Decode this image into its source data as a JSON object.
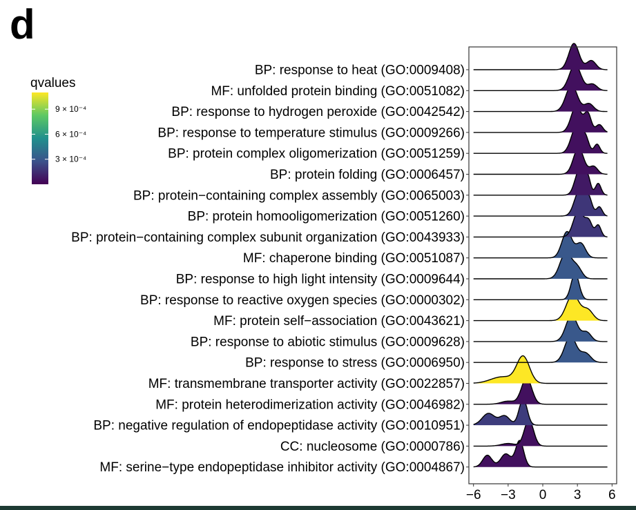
{
  "panel_label": "d",
  "colors": {
    "low": "#440154",
    "mid_low": "#3b528b",
    "mid": "#21908d",
    "mid_high": "#5dc863",
    "high": "#fde725",
    "axis": "#333333",
    "bottom_bar": "#1d3a33"
  },
  "chart_data": {
    "type": "ridgeline",
    "title": "",
    "xlabel": "",
    "ylabel": "",
    "xlim": [
      -6.4,
      6.4
    ],
    "xticks": [
      -6,
      -3,
      0,
      3,
      6
    ],
    "xtick_labels": [
      "−6",
      "−3",
      "0",
      "3",
      "6"
    ],
    "grid": false,
    "legend": {
      "title": "qvalues",
      "placement": "top-left",
      "range": [
        0.0,
        0.0011
      ],
      "ticks": [
        {
          "value": 0.0009,
          "label": "9 × 10⁻⁴"
        },
        {
          "value": 0.0006,
          "label": "6 × 10⁻⁴"
        },
        {
          "value": 0.0003,
          "label": "3 × 10⁻⁴"
        }
      ]
    },
    "series": [
      {
        "name": "BP: response to heat (GO:0009408)",
        "qvalue": 5e-05,
        "x_range": [
          -6,
          5.6
        ],
        "peaks": [
          [
            2.7,
            0.45,
            1.0
          ],
          [
            4.2,
            0.4,
            0.35
          ]
        ]
      },
      {
        "name": "MF: unfolded protein binding (GO:0051082)",
        "qvalue": 5e-05,
        "x_range": [
          -6,
          5.6
        ],
        "peaks": [
          [
            2.8,
            0.5,
            1.0
          ],
          [
            4.3,
            0.4,
            0.25
          ]
        ]
      },
      {
        "name": "BP: response to hydrogen peroxide (GO:0042542)",
        "qvalue": 5e-05,
        "x_range": [
          -6,
          5.6
        ],
        "peaks": [
          [
            2.5,
            0.5,
            1.0
          ],
          [
            4.0,
            0.4,
            0.3
          ]
        ]
      },
      {
        "name": "BP: response to temperature stimulus (GO:0009266)",
        "qvalue": 5e-05,
        "x_range": [
          -6,
          5.6
        ],
        "peaks": [
          [
            2.9,
            0.45,
            1.0
          ],
          [
            3.9,
            0.3,
            0.7
          ],
          [
            4.9,
            0.3,
            0.3
          ]
        ]
      },
      {
        "name": "BP: protein complex oligomerization (GO:0051259)",
        "qvalue": 5e-05,
        "x_range": [
          -6,
          5.6
        ],
        "peaks": [
          [
            2.9,
            0.45,
            1.0
          ],
          [
            3.7,
            0.3,
            0.55
          ],
          [
            4.7,
            0.25,
            0.35
          ]
        ]
      },
      {
        "name": "BP: protein folding (GO:0006457)",
        "qvalue": 5e-05,
        "x_range": [
          -6,
          5.6
        ],
        "peaks": [
          [
            3.1,
            0.45,
            1.0
          ],
          [
            4.4,
            0.35,
            0.3
          ]
        ]
      },
      {
        "name": "BP: protein−containing complex assembly (GO:0065003)",
        "qvalue": 8e-05,
        "x_range": [
          -6,
          5.6
        ],
        "peaks": [
          [
            3.2,
            0.4,
            1.0
          ],
          [
            3.9,
            0.25,
            0.6
          ],
          [
            4.8,
            0.25,
            0.45
          ]
        ]
      },
      {
        "name": "BP: protein homooligomerization (GO:0051260)",
        "qvalue": 0.00018,
        "x_range": [
          -6,
          5.6
        ],
        "peaks": [
          [
            3.2,
            0.45,
            1.0
          ],
          [
            4.0,
            0.3,
            0.6
          ],
          [
            4.9,
            0.25,
            0.35
          ]
        ]
      },
      {
        "name": "BP: protein−containing complex subunit organization (GO:0043933)",
        "qvalue": 0.00018,
        "x_range": [
          -6,
          5.6
        ],
        "peaks": [
          [
            3.1,
            0.45,
            1.0
          ],
          [
            4.0,
            0.3,
            0.55
          ],
          [
            4.8,
            0.25,
            0.45
          ]
        ]
      },
      {
        "name": "MF: chaperone binding (GO:0051087)",
        "qvalue": 0.0003,
        "x_range": [
          -6,
          5.6
        ],
        "peaks": [
          [
            2.1,
            0.45,
            1.0
          ],
          [
            3.3,
            0.4,
            0.55
          ]
        ]
      },
      {
        "name": "BP: response to high light intensity (GO:0009644)",
        "qvalue": 0.0003,
        "x_range": [
          -6,
          5.6
        ],
        "peaks": [
          [
            2.0,
            0.5,
            1.0
          ],
          [
            3.0,
            0.4,
            0.4
          ]
        ]
      },
      {
        "name": "BP: response to reactive oxygen species (GO:0000302)",
        "qvalue": 0.0003,
        "x_range": [
          -6,
          5.6
        ],
        "peaks": [
          [
            2.8,
            0.35,
            1.0
          ]
        ]
      },
      {
        "name": "MF: protein self−association (GO:0043621)",
        "qvalue": 0.00112,
        "x_range": [
          -6,
          5.6
        ],
        "peaks": [
          [
            2.6,
            0.55,
            1.0
          ],
          [
            3.9,
            0.45,
            0.4
          ]
        ]
      },
      {
        "name": "BP: response to abiotic stimulus (GO:0009628)",
        "qvalue": 0.0003,
        "x_range": [
          -6,
          5.6
        ],
        "peaks": [
          [
            2.5,
            0.5,
            1.0
          ],
          [
            3.8,
            0.4,
            0.35
          ]
        ]
      },
      {
        "name": "BP: response to stress (GO:0006950)",
        "qvalue": 0.0003,
        "x_range": [
          -6,
          5.6
        ],
        "peaks": [
          [
            2.4,
            0.5,
            1.0
          ],
          [
            3.7,
            0.45,
            0.35
          ]
        ]
      },
      {
        "name": "MF: transmembrane transporter activity (GO:0022857)",
        "qvalue": 0.00112,
        "x_range": [
          -6,
          5.6
        ],
        "peaks": [
          [
            -1.7,
            0.55,
            1.0
          ],
          [
            -3.5,
            1.0,
            0.25
          ]
        ]
      },
      {
        "name": "MF: protein heterodimerization activity (GO:0046982)",
        "qvalue": 5e-05,
        "x_range": [
          -6,
          5.6
        ],
        "peaks": [
          [
            -1.4,
            0.45,
            1.0
          ],
          [
            -3.0,
            0.6,
            0.12
          ]
        ]
      },
      {
        "name": "BP: negative regulation of endopeptidase activity (GO:0010951)",
        "qvalue": 0.0002,
        "x_range": [
          -6,
          5.6
        ],
        "peaks": [
          [
            -1.7,
            0.35,
            1.0
          ],
          [
            -4.7,
            0.55,
            0.45
          ],
          [
            -3.3,
            0.45,
            0.35
          ]
        ]
      },
      {
        "name": "CC: nucleosome (GO:0000786)",
        "qvalue": 5e-05,
        "x_range": [
          -6,
          5.6
        ],
        "peaks": [
          [
            -1.2,
            0.4,
            1.0
          ],
          [
            -3.0,
            0.6,
            0.1
          ]
        ]
      },
      {
        "name": "MF: serine−type endopeptidase inhibitor activity (GO:0004867)",
        "qvalue": 5e-05,
        "x_range": [
          -6,
          5.6
        ],
        "peaks": [
          [
            -2.0,
            0.35,
            1.0
          ],
          [
            -4.8,
            0.4,
            0.45
          ],
          [
            -3.2,
            0.45,
            0.5
          ]
        ]
      }
    ]
  }
}
